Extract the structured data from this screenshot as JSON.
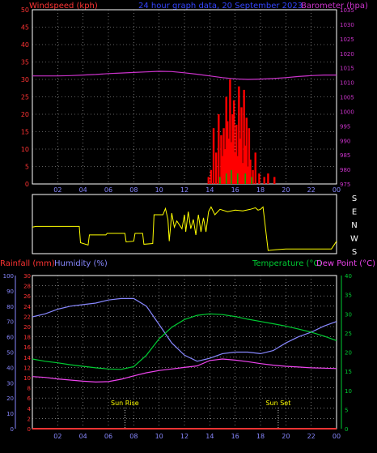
{
  "header": {
    "left_title": "Windspeed (kph)",
    "center_title": "24 hour graph data, 20 September 2023",
    "right_title": "Barometer (hpa)"
  },
  "colors": {
    "background": "#000000",
    "windspeed": "#ff0000",
    "gust": "#00aa00",
    "barometer": "#cc33cc",
    "center_title": "#3344ff",
    "direction": "#ffff00",
    "rainfall": "#ff3333",
    "humidity": "#8888ff",
    "temperature": "#00cc33",
    "dewpoint": "#ee44ee",
    "grid": "#bbbbbb",
    "axis_white": "#ffffff",
    "sun_labels": "#ffff00"
  },
  "x_ticks": [
    "02",
    "04",
    "06",
    "08",
    "10",
    "12",
    "14",
    "16",
    "18",
    "20",
    "22",
    "00"
  ],
  "direction_letters": [
    "S",
    "E",
    "N",
    "W",
    "S"
  ],
  "bottom_header": {
    "rainfall_label": "Rainfall (mm)",
    "humidity_label": "Humidity (%)",
    "temperature_label": "Temperature (°C)",
    "dewpoint_label": "Dew Point (°C)"
  },
  "sun": {
    "rise_label": "Sun Rise",
    "set_label": "Sun Set",
    "rise_hour": 7.3,
    "set_hour": 19.4
  },
  "chart_data": [
    {
      "type": "line",
      "panel": "wind_barometer",
      "ylabel_left": "Windspeed (kph)",
      "ylabel_right": "Barometer (hpa)",
      "ylim_left": [
        0,
        50
      ],
      "ylim_right": [
        975,
        1035
      ],
      "yticks_left": [
        "0",
        "5",
        "10",
        "15",
        "20",
        "25",
        "30",
        "35",
        "40",
        "45",
        "50"
      ],
      "yticks_right": [
        "975",
        "980",
        "985",
        "990",
        "995",
        "1000",
        "1005",
        "1010",
        "1015",
        "1020",
        "1025",
        "1030",
        "1035"
      ],
      "x": [
        0,
        1,
        2,
        3,
        4,
        5,
        6,
        7,
        8,
        9,
        10,
        11,
        12,
        13,
        14,
        15,
        16,
        17,
        18,
        19,
        20,
        21,
        22,
        23,
        24
      ],
      "series": [
        {
          "name": "Barometer (hpa)",
          "axis": "right",
          "values": [
            1012.2,
            1012.2,
            1012.2,
            1012.3,
            1012.5,
            1012.7,
            1013.0,
            1013.2,
            1013.4,
            1013.6,
            1013.8,
            1013.7,
            1013.3,
            1012.8,
            1012.2,
            1011.6,
            1011.2,
            1011.0,
            1011.1,
            1011.3,
            1011.6,
            1012.0,
            1012.3,
            1012.5,
            1012.5
          ]
        }
      ],
      "wind_bars": {
        "hours": [
          13.9,
          14.1,
          14.3,
          14.5,
          14.7,
          14.9,
          15.0,
          15.1,
          15.2,
          15.3,
          15.4,
          15.5,
          15.6,
          15.7,
          15.8,
          15.9,
          16.0,
          16.1,
          16.2,
          16.3,
          16.4,
          16.5,
          16.6,
          16.7,
          16.8,
          16.9,
          17.0,
          17.1,
          17.2,
          17.4,
          17.6,
          17.9,
          18.3,
          18.6,
          19.1
        ],
        "values": [
          2,
          4,
          16,
          9,
          20,
          14,
          8,
          16,
          10,
          25,
          18,
          13,
          30,
          12,
          20,
          24,
          9,
          17,
          8,
          28,
          13,
          22,
          6,
          27,
          11,
          19,
          5,
          16,
          7,
          4,
          9,
          3,
          2,
          3,
          2
        ]
      },
      "gust_bars": {
        "hours": [
          14.8,
          15.3,
          15.7,
          16.2,
          16.8,
          17.3
        ],
        "values": [
          2,
          3,
          4,
          3,
          3,
          2
        ]
      }
    },
    {
      "type": "line",
      "panel": "wind_direction",
      "ylim": [
        "S",
        "S"
      ],
      "x": [
        0,
        0.3,
        1.4,
        2.6,
        3.7,
        3.8,
        4.4,
        4.5,
        5.8,
        5.9,
        7.3,
        7.4,
        8.0,
        8.1,
        8.7,
        8.8,
        9.5,
        9.6,
        10.3,
        10.5,
        10.7,
        10.8,
        11.0,
        11.2,
        11.4,
        11.8,
        12.0,
        12.1,
        12.3,
        12.5,
        12.7,
        12.9,
        13.1,
        13.3,
        13.5,
        13.7,
        13.9,
        14.1,
        14.4,
        14.8,
        15.4,
        16.0,
        16.6,
        17.2,
        17.6,
        17.8,
        18.0,
        18.2,
        18.6,
        19.2,
        20.0,
        21.0,
        22.0,
        23.0,
        23.6,
        24.0
      ],
      "series": [
        {
          "name": "",
          "values": [
            340,
            345,
            345,
            345,
            345,
            240,
            225,
            290,
            290,
            300,
            300,
            245,
            250,
            300,
            300,
            230,
            235,
            60,
            60,
            100,
            30,
            250,
            70,
            340,
            20,
            330,
            60,
            310,
            80,
            330,
            30,
            290,
            60,
            310,
            40,
            310,
            80,
            110,
            60,
            95,
            80,
            90,
            85,
            95,
            105,
            90,
            95,
            110,
            190,
            195,
            200,
            200,
            200,
            200,
            200,
            250
          ]
        }
      ]
    },
    {
      "type": "line",
      "panel": "temperature_humidity_rain",
      "ylim_rain": [
        0,
        30
      ],
      "ylim_humidity": [
        0,
        100
      ],
      "ylim_temperature": [
        0,
        40
      ],
      "yticks_rain": [
        "0",
        "2",
        "4",
        "6",
        "8",
        "10",
        "12",
        "14",
        "16",
        "18",
        "20",
        "22",
        "24",
        "26",
        "28",
        "30"
      ],
      "yticks_humidity": [
        "0",
        "10",
        "20",
        "30",
        "40",
        "50",
        "60",
        "70",
        "80",
        "90",
        "100"
      ],
      "yticks_temperature": [
        "0",
        "5",
        "10",
        "15",
        "20",
        "25",
        "30",
        "35",
        "40"
      ],
      "x": [
        0,
        1,
        2,
        3,
        4,
        5,
        6,
        7,
        8,
        9,
        10,
        11,
        12,
        13,
        14,
        15,
        16,
        17,
        18,
        19,
        20,
        21,
        22,
        23,
        24
      ],
      "series": [
        {
          "name": "Humidity (%)",
          "axis": "humidity",
          "values": [
            73,
            75,
            78,
            80,
            81,
            82,
            84,
            85,
            85,
            80,
            68,
            56,
            48,
            44,
            46,
            49,
            50,
            50,
            49,
            51,
            56,
            60,
            63,
            67,
            70
          ]
        },
        {
          "name": "Temperature (°C)",
          "axis": "temperature",
          "values": [
            18.2,
            17.6,
            17.2,
            16.7,
            16.3,
            15.9,
            15.6,
            15.5,
            16.2,
            19.2,
            23.5,
            26.5,
            28.5,
            29.6,
            30.0,
            29.8,
            29.3,
            28.6,
            28.0,
            27.4,
            26.8,
            26.0,
            25.2,
            24.2,
            23.0
          ]
        },
        {
          "name": "Dew Point (°C)",
          "axis": "temperature",
          "values": [
            13.6,
            13.4,
            13.0,
            12.7,
            12.4,
            12.2,
            12.3,
            12.9,
            13.8,
            14.6,
            15.2,
            15.6,
            16.0,
            16.4,
            17.8,
            18.2,
            17.9,
            17.5,
            17.0,
            16.6,
            16.3,
            16.1,
            15.9,
            15.8,
            15.7
          ]
        },
        {
          "name": "Rainfall (mm)",
          "axis": "rain",
          "values": [
            0,
            0,
            0,
            0,
            0,
            0,
            0,
            0,
            0,
            0,
            0,
            0,
            0,
            0,
            0,
            0,
            0,
            0,
            0,
            0,
            0,
            0,
            0,
            0,
            0
          ]
        }
      ]
    }
  ]
}
